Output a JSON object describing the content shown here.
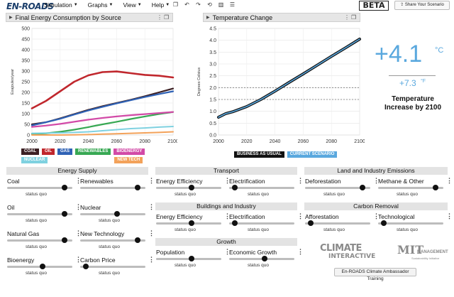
{
  "header": {
    "logo": "EN-ROADS",
    "menu": [
      {
        "label": "Simulation"
      },
      {
        "label": "Graphs"
      },
      {
        "label": "View"
      },
      {
        "label": "Help"
      }
    ],
    "tool_icons": [
      "copy-icon",
      "undo-icon",
      "redo-icon",
      "reset-icon",
      "table-icon",
      "list-icon"
    ],
    "beta": "BETA",
    "share": "Share Your Scenario"
  },
  "graph_left": {
    "title": "Final Energy Consumption by Source",
    "legend": [
      {
        "label": "COAL",
        "color": "#3b1f23"
      },
      {
        "label": "OIL",
        "color": "#c0272d"
      },
      {
        "label": "GAS",
        "color": "#2f62b5"
      },
      {
        "label": "RENEWABLES",
        "color": "#37a853"
      },
      {
        "label": "BIOENERGY",
        "color": "#d24aa7"
      },
      {
        "label": "NUCLEAR",
        "color": "#7fd1e0"
      },
      {
        "label": "NEW TECH",
        "color": "#f3a25a"
      }
    ]
  },
  "graph_right": {
    "title": "Temperature Change",
    "legend": [
      {
        "label": "BUSINESS AS USUAL",
        "color": "#111111"
      },
      {
        "label": "CURRENT SCENARIO",
        "color": "#5aa8de"
      }
    ]
  },
  "chart_data": [
    {
      "type": "line",
      "title": "Final Energy Consumption by Source",
      "ylabel": "Exajoules/year",
      "xlabel": "",
      "xlim": [
        2000,
        2100
      ],
      "ylim": [
        0,
        500
      ],
      "x_ticks": [
        2000,
        2020,
        2040,
        2060,
        2080,
        2100
      ],
      "y_ticks": [
        0,
        50,
        100,
        150,
        200,
        250,
        300,
        350,
        400,
        450,
        500
      ],
      "grid": true,
      "x": [
        2000,
        2010,
        2020,
        2030,
        2040,
        2050,
        2060,
        2070,
        2080,
        2090,
        2100
      ],
      "series": [
        {
          "name": "COAL",
          "color": "#3b1f23",
          "values": [
            50,
            60,
            78,
            98,
            118,
            135,
            150,
            165,
            182,
            200,
            218
          ]
        },
        {
          "name": "OIL",
          "color": "#c0272d",
          "values": [
            125,
            160,
            205,
            250,
            280,
            295,
            298,
            290,
            282,
            278,
            270
          ]
        },
        {
          "name": "GAS",
          "color": "#2f62b5",
          "values": [
            45,
            60,
            76,
            96,
            115,
            132,
            148,
            163,
            178,
            192,
            205
          ]
        },
        {
          "name": "RENEWABLES",
          "color": "#37a853",
          "values": [
            5,
            8,
            15,
            25,
            37,
            50,
            62,
            75,
            87,
            98,
            108
          ]
        },
        {
          "name": "BIOENERGY",
          "color": "#d24aa7",
          "values": [
            38,
            44,
            52,
            62,
            72,
            80,
            87,
            93,
            98,
            103,
            108
          ]
        },
        {
          "name": "NUCLEAR",
          "color": "#7fd1e0",
          "values": [
            8,
            9,
            10,
            12,
            15,
            20,
            25,
            30,
            33,
            37,
            40
          ]
        },
        {
          "name": "NEW TECH",
          "color": "#f3a25a",
          "values": [
            0,
            0,
            0,
            1,
            2,
            4,
            6,
            8,
            10,
            12,
            15
          ]
        }
      ]
    },
    {
      "type": "line",
      "title": "Temperature Change",
      "ylabel": "Degrees Celsius",
      "xlabel": "",
      "xlim": [
        2000,
        2100
      ],
      "ylim": [
        0,
        4.5
      ],
      "x_ticks": [
        2000,
        2020,
        2040,
        2060,
        2080,
        2100
      ],
      "y_ticks": [
        0,
        0.5,
        1.0,
        1.5,
        2.0,
        2.5,
        3.0,
        3.5,
        4.0,
        4.5
      ],
      "reference_lines": [
        1.5,
        2.0
      ],
      "grid": true,
      "x": [
        2000,
        2005,
        2010,
        2020,
        2030,
        2040,
        2050,
        2060,
        2070,
        2080,
        2090,
        2100
      ],
      "series": [
        {
          "name": "BUSINESS AS USUAL",
          "color": "#111111",
          "values": [
            0.75,
            0.9,
            0.98,
            1.2,
            1.5,
            1.85,
            2.22,
            2.58,
            2.95,
            3.32,
            3.68,
            4.05
          ]
        },
        {
          "name": "CURRENT SCENARIO",
          "color": "#5aa8de",
          "values": [
            0.75,
            0.9,
            0.98,
            1.2,
            1.5,
            1.85,
            2.22,
            2.58,
            2.95,
            3.32,
            3.68,
            4.05
          ]
        }
      ]
    }
  ],
  "temperature": {
    "celsius": "+4.1",
    "celsius_unit": "°C",
    "fahrenheit": "+7.3",
    "fahrenheit_unit": "°F",
    "label": "Temperature Increase by 2100"
  },
  "sections": {
    "energy_supply": "Energy Supply",
    "transport": "Transport",
    "land": "Land and Industry Emissions",
    "buildings": "Buildings and Industry",
    "carbon_removal": "Carbon Removal",
    "growth": "Growth"
  },
  "status_quo": "status quo",
  "controls": {
    "coal": {
      "label": "Coal",
      "level": 0.88
    },
    "renewables": {
      "label": "Renewables",
      "level": 0.88
    },
    "oil": {
      "label": "Oil",
      "level": 0.88
    },
    "nuclear": {
      "label": "Nuclear",
      "level": 0.55
    },
    "natural_gas": {
      "label": "Natural Gas",
      "level": 0.88
    },
    "new_technology": {
      "label": "New Technology",
      "level": 0.88
    },
    "bioenergy": {
      "label": "Bioenergy",
      "level": 0.52
    },
    "carbon_price": {
      "label": "Carbon Price",
      "level": 0.05
    },
    "transport_efficiency": {
      "label": "Energy Efficiency",
      "level": 0.52
    },
    "transport_electrification": {
      "label": "Electrification",
      "level": 0.05
    },
    "buildings_efficiency": {
      "label": "Energy Efficiency",
      "level": 0.52
    },
    "buildings_electrification": {
      "label": "Electrification",
      "level": 0.05
    },
    "population": {
      "label": "Population",
      "level": 0.52
    },
    "economic_growth": {
      "label": "Economic Growth",
      "level": 0.52
    },
    "deforestation": {
      "label": "Deforestation",
      "level": 0.88
    },
    "methane": {
      "label": "Methane & Other",
      "level": 0.88
    },
    "afforestation": {
      "label": "Afforestation",
      "level": 0.05
    },
    "technological": {
      "label": "Technological",
      "level": 0.05
    }
  },
  "footer": {
    "ci_line1": "CLIMATE",
    "ci_line2": "INTERACTIVE",
    "mit_line1": "MIT",
    "mit_line2": "MANAGEMENT",
    "mit_line3": "Sustainability Initiative",
    "training_button": "En-ROADS Climate Ambassador Training"
  }
}
